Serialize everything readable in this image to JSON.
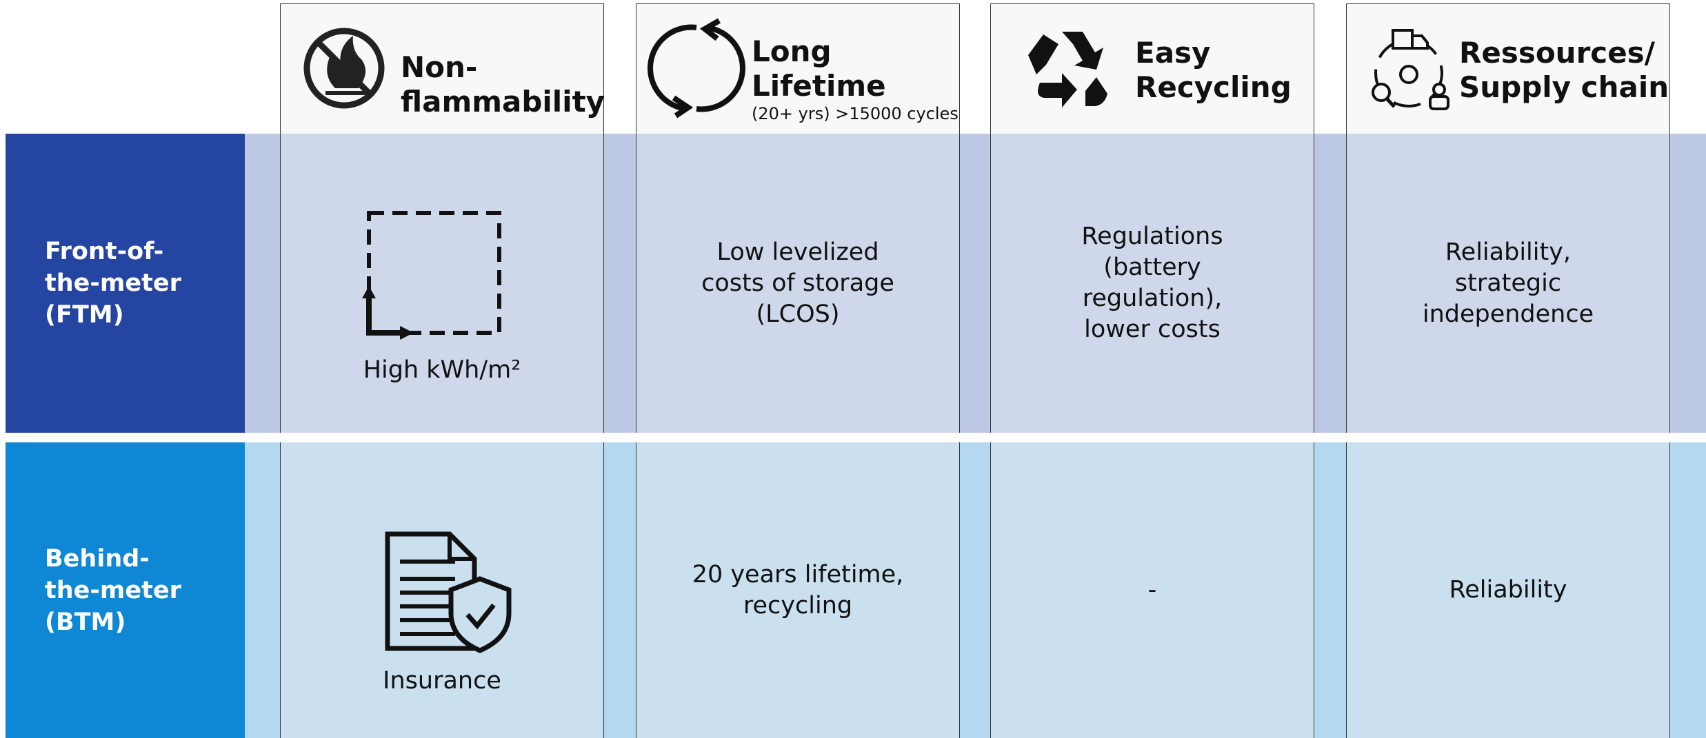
{
  "columns": [
    {
      "title": [
        "Non-",
        "flammability"
      ]
    },
    {
      "title": [
        "Long",
        "Lifetime"
      ],
      "subtitle": "(20+ yrs) >15000 cycles"
    },
    {
      "title": [
        "Easy",
        "Recycling"
      ]
    },
    {
      "title": [
        "Ressources/",
        "Supply chain"
      ]
    }
  ],
  "rows": [
    {
      "label": [
        "Front-of-",
        "the-meter",
        "(FTM)"
      ],
      "cells": [
        [
          "High kWh/m²"
        ],
        [
          "Low levelized",
          "costs of storage",
          "(LCOS)"
        ],
        [
          "Regulations",
          "(battery",
          "regulation),",
          "lower costs"
        ],
        [
          "Reliability,",
          "strategic",
          "independence"
        ]
      ]
    },
    {
      "label": [
        "Behind-",
        "the-meter",
        "(BTM)"
      ],
      "cells": [
        [
          "Insurance"
        ],
        [
          "20 years lifetime,",
          "recycling"
        ],
        [
          "-"
        ],
        [
          "Reliability"
        ]
      ]
    }
  ]
}
